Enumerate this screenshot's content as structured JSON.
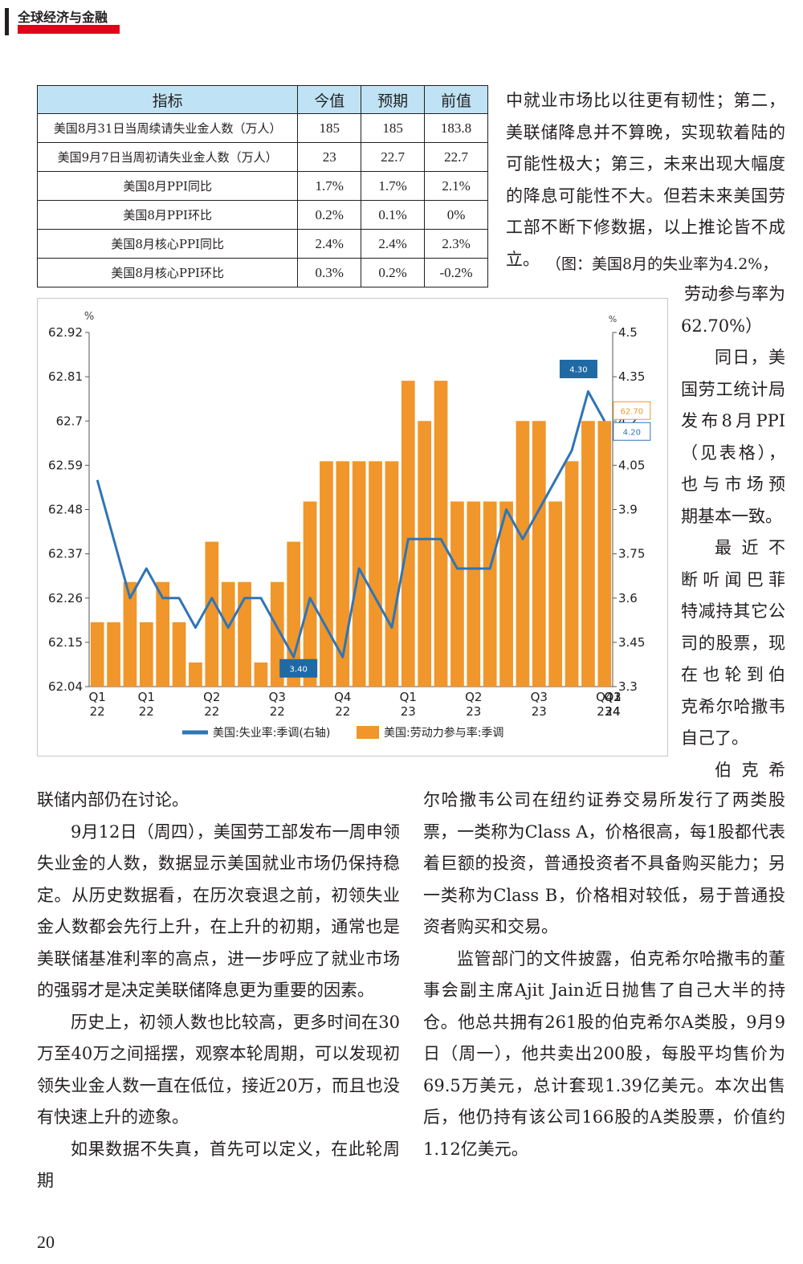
{
  "header": {
    "title": "全球经济与金融"
  },
  "table": {
    "headers": [
      "指标",
      "今值",
      "预期",
      "前值"
    ],
    "rows": [
      [
        "美国8月31日当周续请失业金人数（万人）",
        "185",
        "185",
        "183.8"
      ],
      [
        "美国9月7日当周初请失业金人数（万人）",
        "23",
        "22.7",
        "22.7"
      ],
      [
        "美国8月PPI同比",
        "1.7%",
        "1.7%",
        "2.1%"
      ],
      [
        "美国8月PPI环比",
        "0.2%",
        "0.1%",
        "0%"
      ],
      [
        "美国8月核心PPI同比",
        "2.4%",
        "2.4%",
        "2.3%"
      ],
      [
        "美国8月核心PPI环比",
        "0.3%",
        "0.2%",
        "-0.2%"
      ]
    ]
  },
  "right_column": {
    "top_text": "中就业市场比以往更有韧性；第二，美联储降息并不算晚，实现软着陆的可能性极大；第三，未来出现大幅度的降息可能性不大。但若未来美国劳工部不断下修数据，以上推论皆不成立。",
    "caption_line1": "（图：美国8月的失业率为4.2%，",
    "caption_line2": "劳动参与率为",
    "caption_line3": "62.70%）",
    "narrow_paras": [
      [
        "同日，美",
        "国劳工统计局",
        "发布8月PPI",
        "（见表格），",
        "也与市场预",
        "期基本一致。"
      ],
      [
        "最近不",
        "断听闻巴菲",
        "特减持其它公",
        "司的股票，现",
        "在也轮到伯",
        "克希尔哈撒韦",
        "自己了。"
      ],
      [
        "伯克希"
      ]
    ]
  },
  "left_column": {
    "paras": [
      "联储内部仍在讨论。",
      "9月12日（周四），美国劳工部发布一周申领失业金的人数，数据显示美国就业市场仍保持稳定。从历史数据看，在历次衰退之前，初领失业金人数都会先行上升，在上升的初期，通常也是美联储基准利率的高点，进一步呼应了就业市场的强弱才是决定美联储降息更为重要的因素。",
      "历史上，初领人数也比较高，更多时间在30万至40万之间摇摆，观察本轮周期，可以发现初领失业金人数一直在低位，接近20万，而且也没有快速上升的迹象。",
      "如果数据不失真，首先可以定义，在此轮周期"
    ]
  },
  "bottom_right_column": {
    "paras": [
      "尔哈撒韦公司在纽约证券交易所发行了两类股票，一类称为Class A，价格很高，每1股都代表着巨额的投资，普通投资者不具备购买能力；另一类称为Class B，价格相对较低，易于普通投资者购买和交易。",
      "监管部门的文件披露，伯克希尔哈撒韦的董事会副主席Ajit Jain近日抛售了自己大半的持仓。他总共拥有261股的伯克希尔A类股，9月9日（周一），他共卖出200股，每股平均售价为69.5万美元，总计套现1.39亿美元。本次出售后，他仍持有该公司166股的A类股票，价值约1.12亿美元。"
    ]
  },
  "page_number": "20",
  "chart_data": {
    "type": "bar+line",
    "left_unit": "%",
    "right_unit": "%",
    "left_axis": {
      "ticks": [
        "62.04",
        "62.15",
        "62.26",
        "62.37",
        "62.48",
        "62.59",
        "62.7",
        "62.81",
        "62.92"
      ],
      "ylim": [
        62.04,
        62.92
      ]
    },
    "right_axis": {
      "ticks": [
        "3.3",
        "3.45",
        "3.6",
        "3.75",
        "3.9",
        "4.05",
        "4.2",
        "4.35",
        "4.5"
      ],
      "ylim": [
        3.3,
        4.5
      ]
    },
    "x_labels": [
      {
        "i": 0,
        "q": "Q1",
        "y": "22"
      },
      {
        "i": 3,
        "q": "Q1",
        "y": "22"
      },
      {
        "i": 7,
        "q": "Q2",
        "y": "22"
      },
      {
        "i": 11,
        "q": "Q3",
        "y": "22"
      },
      {
        "i": 15,
        "q": "Q4",
        "y": "22"
      },
      {
        "i": 19,
        "q": "Q1",
        "y": "23"
      },
      {
        "i": 23,
        "q": "Q2",
        "y": "23"
      },
      {
        "i": 27,
        "q": "Q3",
        "y": "23"
      },
      {
        "i": 31,
        "q": "Q4",
        "y": "23"
      },
      {
        "i": 35,
        "q": "Q1",
        "y": "24"
      },
      {
        "i": 39,
        "q": "Q2",
        "y": "24"
      },
      {
        "i": 41,
        "q": "Q3",
        "y": "24"
      }
    ],
    "series": [
      {
        "name": "美国:失业率:季调(右轴)",
        "axis": "right",
        "kind": "line",
        "color": "#2e75b6",
        "values": [
          4.0,
          3.8,
          3.6,
          3.7,
          3.6,
          3.6,
          3.5,
          3.6,
          3.5,
          3.6,
          3.6,
          3.5,
          3.4,
          3.6,
          3.5,
          3.4,
          3.7,
          3.6,
          3.5,
          3.8,
          3.8,
          3.8,
          3.7,
          3.7,
          3.7,
          3.9,
          3.8,
          3.9,
          4.0,
          4.1,
          4.3,
          4.2
        ]
      },
      {
        "name": "美国:劳动力参与率:季调",
        "axis": "left",
        "kind": "bar",
        "color": "#f0962a",
        "values": [
          62.2,
          62.2,
          62.3,
          62.2,
          62.3,
          62.2,
          62.1,
          62.4,
          62.3,
          62.3,
          62.1,
          62.3,
          62.4,
          62.5,
          62.6,
          62.6,
          62.6,
          62.6,
          62.6,
          62.8,
          62.7,
          62.8,
          62.5,
          62.5,
          62.5,
          62.5,
          62.7,
          62.7,
          62.5,
          62.6,
          62.7,
          62.7
        ]
      }
    ],
    "labels": {
      "line_min": "3.40",
      "line_max": "4.30",
      "bar_last": "62.70",
      "line_last": "4.20"
    }
  }
}
